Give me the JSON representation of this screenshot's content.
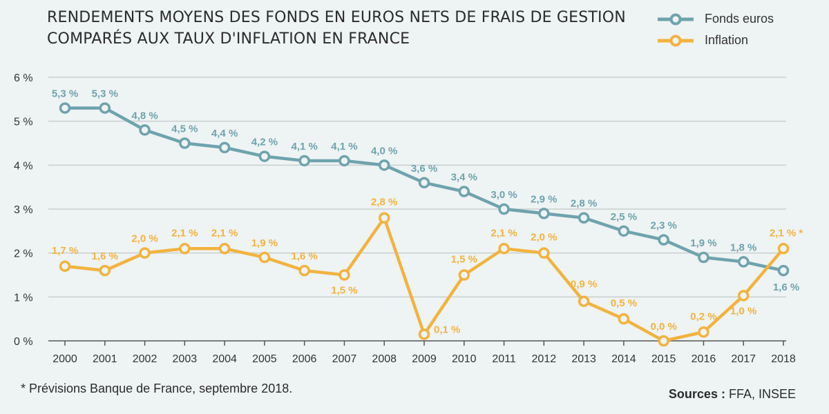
{
  "title_lines": [
    "RENDEMENTS MOYENS DES FONDS EN EUROS NETS DE FRAIS DE GESTION",
    "COMPARÉS AUX TAUX D'INFLATION EN FRANCE"
  ],
  "footnote": "* Prévisions Banque de France, septembre 2018.",
  "sources": {
    "label": "Sources :",
    "value": "FFA, INSEE"
  },
  "colors": {
    "fonds": "#6ea3ad",
    "inflation": "#f2b33d",
    "grid": "#c9cfcf",
    "axis": "#555555"
  },
  "chart_data": {
    "type": "line",
    "title": "RENDEMENTS MOYENS DES FONDS EN EUROS NETS DE FRAIS DE GESTION COMPARÉS AUX TAUX D'INFLATION EN FRANCE",
    "x": [
      "2000",
      "2001",
      "2002",
      "2003",
      "2004",
      "2005",
      "2006",
      "2007",
      "2008",
      "2009",
      "2010",
      "2011",
      "2012",
      "2013",
      "2014",
      "2015",
      "2016",
      "2017",
      "2018"
    ],
    "yticks": [
      "0 %",
      "1 %",
      "2 %",
      "3 %",
      "4 %",
      "5 %",
      "6 %"
    ],
    "ylim": [
      0,
      6
    ],
    "grid": true,
    "legend_position": "top-right",
    "series": [
      {
        "name": "Fonds euros",
        "color": "#6ea3ad",
        "values": [
          5.3,
          5.3,
          4.8,
          4.5,
          4.4,
          4.2,
          4.1,
          4.1,
          4.0,
          3.6,
          3.4,
          3.0,
          2.9,
          2.8,
          2.5,
          2.3,
          1.9,
          1.8,
          1.6
        ],
        "labels": [
          "5,3 %",
          "5,3 %",
          "4,8 %",
          "4,5 %",
          "4,4 %",
          "4,2 %",
          "4,1 %",
          "4,1 %",
          "4,0 %",
          "3,6 %",
          "3,4 %",
          "3,0 %",
          "2,9 %",
          "2,8 %",
          "2,5 %",
          "2,3 %",
          "1,9 %",
          "1,8 %",
          "1,6 %"
        ]
      },
      {
        "name": "Inflation",
        "color": "#f2b33d",
        "values": [
          1.7,
          1.6,
          2.0,
          2.1,
          2.1,
          1.9,
          1.6,
          1.5,
          2.8,
          0.15,
          1.5,
          2.1,
          2.0,
          0.9,
          0.5,
          0.0,
          0.2,
          1.03,
          2.1
        ],
        "labels": [
          "1,7 %",
          "1,6 %",
          "2,0 %",
          "2,1 %",
          "2,1 %",
          "1,9 %",
          "1,6 %",
          "1,5 %",
          "2,8 %",
          "0,1 %",
          "1,5 %",
          "2,1 %",
          "2,0 %",
          "0,9 %",
          "0,5 %",
          "0,0 %",
          "0,2 %",
          "1,0 %",
          "2,1 % *"
        ]
      }
    ]
  }
}
